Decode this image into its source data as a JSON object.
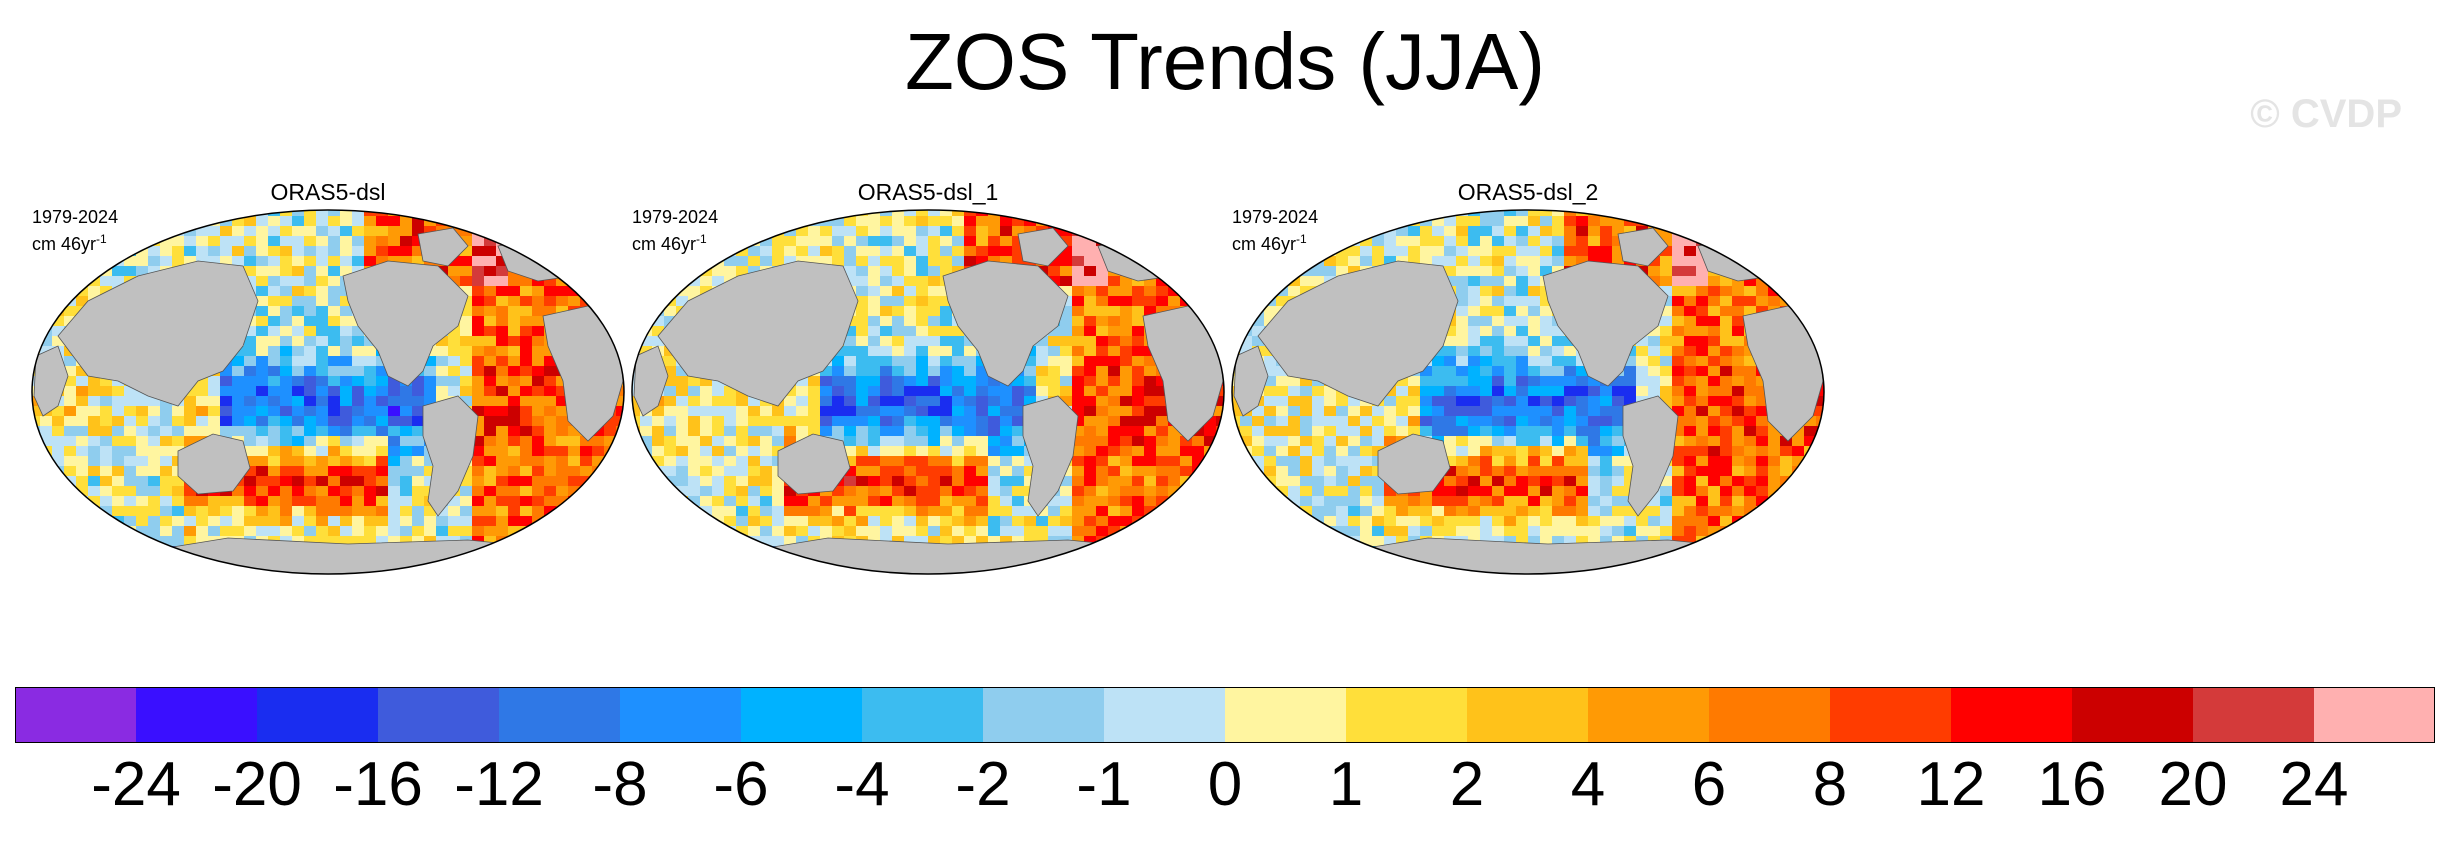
{
  "title": "ZOS Trends (JJA)",
  "watermark": "© CVDP",
  "panels": [
    {
      "name": "ORAS5-dsl",
      "period": "1979-2024",
      "units_base": "cm 46yr",
      "units_exp": "-1"
    },
    {
      "name": "ORAS5-dsl_1",
      "period": "1979-2024",
      "units_base": "cm 46yr",
      "units_exp": "-1"
    },
    {
      "name": "ORAS5-dsl_2",
      "period": "1979-2024",
      "units_base": "cm 46yr",
      "units_exp": "-1"
    }
  ],
  "colorbar": {
    "colors": [
      "#8a2be2",
      "#3a0fff",
      "#1a2df0",
      "#3f5bdc",
      "#2f78e6",
      "#1e90ff",
      "#00b2ff",
      "#3cbcf0",
      "#8fcdee",
      "#bde2f6",
      "#fff5a0",
      "#ffdf3a",
      "#ffc21a",
      "#ff9a05",
      "#ff7a00",
      "#ff3c00",
      "#ff0000",
      "#cc0000",
      "#d43a3a",
      "#ffb0b0"
    ],
    "labels": [
      "-24",
      "-20",
      "-16",
      "-12",
      "-8",
      "-6",
      "-4",
      "-2",
      "-1",
      "0",
      "1",
      "2",
      "4",
      "6",
      "8",
      "12",
      "16",
      "20",
      "24"
    ]
  },
  "map_colors": {
    "land": "#c0c0c0",
    "ocean_negative": "#3f8fe8",
    "ocean_positive": "#ff8a1a"
  }
}
